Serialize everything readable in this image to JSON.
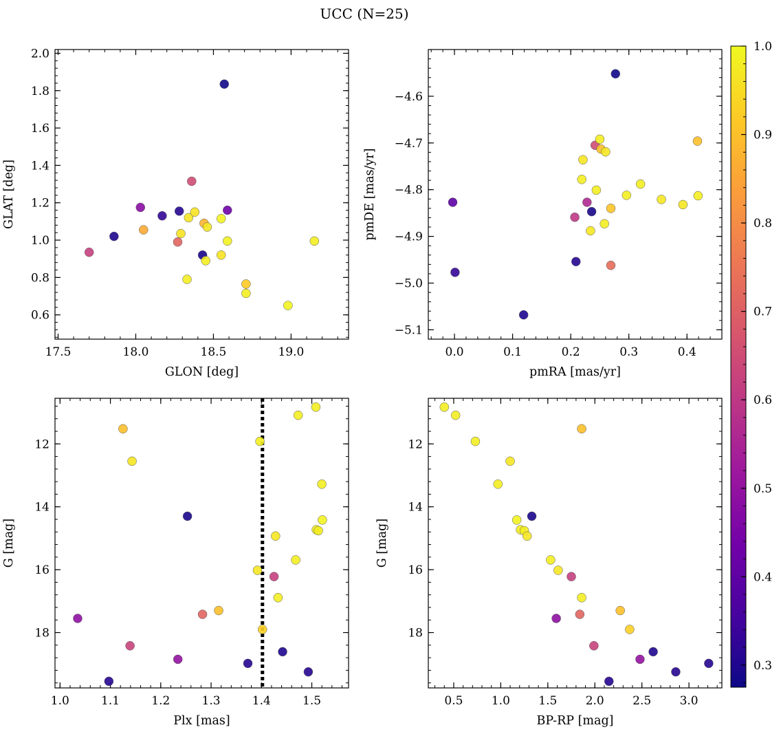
{
  "figure": {
    "title": "UCC (N=25)"
  },
  "colorbar": {
    "ticks": [
      0.3,
      0.4,
      0.5,
      0.6,
      0.7,
      0.8,
      0.9,
      1.0
    ],
    "tick_labels": [
      "0.3",
      "0.4",
      "0.5",
      "0.6",
      "0.7",
      "0.8",
      "0.9",
      "1.0"
    ],
    "range": [
      0.275,
      1.0
    ],
    "colormap": "plasma",
    "colormap_stops": [
      "#0d0887",
      "#46039f",
      "#7201a8",
      "#9c179e",
      "#bd3786",
      "#d8576b",
      "#ed7953",
      "#fb9f3a",
      "#fdca26",
      "#f0f921"
    ]
  },
  "chart_data": [
    {
      "type": "scatter",
      "xlabel": "GLON [deg]",
      "ylabel": "GLAT [deg]",
      "xlim": [
        17.48,
        19.37
      ],
      "ylim": [
        0.47,
        2.02
      ],
      "xticks": [
        17.5,
        18.0,
        18.5,
        19.0
      ],
      "xtick_labels": [
        "17.5",
        "18.0",
        "18.5",
        "19.0"
      ],
      "yticks": [
        0.6,
        0.8,
        1.0,
        1.2,
        1.4,
        1.6,
        1.8,
        2.0
      ],
      "ytick_labels": [
        "0.6",
        "0.8",
        "1.0",
        "1.2",
        "1.4",
        "1.6",
        "1.8",
        "2.0"
      ],
      "points": [
        {
          "x": 18.57,
          "y": 1.835,
          "c": 0.28
        },
        {
          "x": 17.7,
          "y": 0.935,
          "c": 0.62
        },
        {
          "x": 17.86,
          "y": 1.02,
          "c": 0.3
        },
        {
          "x": 18.03,
          "y": 1.175,
          "c": 0.48
        },
        {
          "x": 18.05,
          "y": 1.055,
          "c": 0.86
        },
        {
          "x": 18.17,
          "y": 1.13,
          "c": 0.33
        },
        {
          "x": 18.27,
          "y": 0.99,
          "c": 0.71
        },
        {
          "x": 18.28,
          "y": 1.155,
          "c": 0.31
        },
        {
          "x": 18.29,
          "y": 1.035,
          "c": 0.96
        },
        {
          "x": 18.33,
          "y": 0.79,
          "c": 0.98
        },
        {
          "x": 18.34,
          "y": 1.12,
          "c": 0.97
        },
        {
          "x": 18.36,
          "y": 1.315,
          "c": 0.65
        },
        {
          "x": 18.38,
          "y": 1.15,
          "c": 0.96
        },
        {
          "x": 18.43,
          "y": 0.92,
          "c": 0.29
        },
        {
          "x": 18.44,
          "y": 1.09,
          "c": 0.88
        },
        {
          "x": 18.45,
          "y": 0.89,
          "c": 0.98
        },
        {
          "x": 18.46,
          "y": 1.07,
          "c": 0.97
        },
        {
          "x": 18.55,
          "y": 1.115,
          "c": 0.99
        },
        {
          "x": 18.55,
          "y": 0.92,
          "c": 0.96
        },
        {
          "x": 18.59,
          "y": 1.16,
          "c": 0.43
        },
        {
          "x": 18.59,
          "y": 0.995,
          "c": 0.99
        },
        {
          "x": 18.71,
          "y": 0.765,
          "c": 0.92
        },
        {
          "x": 18.71,
          "y": 0.715,
          "c": 0.98
        },
        {
          "x": 18.98,
          "y": 0.65,
          "c": 0.99
        },
        {
          "x": 19.15,
          "y": 0.995,
          "c": 0.98
        }
      ]
    },
    {
      "type": "scatter",
      "xlabel": "pmRA [mas/yr]",
      "ylabel": "pmDE [mas/yr]",
      "xlim": [
        -0.045,
        0.46
      ],
      "ylim": [
        -5.12,
        -4.5
      ],
      "xticks": [
        0.0,
        0.1,
        0.2,
        0.3,
        0.4
      ],
      "xtick_labels": [
        "0.0",
        "0.1",
        "0.2",
        "0.3",
        "0.4"
      ],
      "yticks": [
        -5.1,
        -5.0,
        -4.9,
        -4.8,
        -4.7,
        -4.6
      ],
      "ytick_labels": [
        "−5.1",
        "−5.0",
        "−4.9",
        "−4.8",
        "−4.7",
        "−4.6"
      ],
      "points": [
        {
          "x": 0.277,
          "y": -4.552,
          "c": 0.28
        },
        {
          "x": -0.003,
          "y": -4.827,
          "c": 0.4
        },
        {
          "x": 0.001,
          "y": -4.977,
          "c": 0.33
        },
        {
          "x": 0.119,
          "y": -5.068,
          "c": 0.3
        },
        {
          "x": 0.209,
          "y": -4.954,
          "c": 0.31
        },
        {
          "x": 0.207,
          "y": -4.859,
          "c": 0.6
        },
        {
          "x": 0.228,
          "y": -4.827,
          "c": 0.56
        },
        {
          "x": 0.236,
          "y": -4.847,
          "c": 0.29
        },
        {
          "x": 0.234,
          "y": -4.888,
          "c": 0.97
        },
        {
          "x": 0.219,
          "y": -4.778,
          "c": 0.98
        },
        {
          "x": 0.221,
          "y": -4.736,
          "c": 0.97
        },
        {
          "x": 0.242,
          "y": -4.705,
          "c": 0.65
        },
        {
          "x": 0.25,
          "y": -4.692,
          "c": 0.98
        },
        {
          "x": 0.252,
          "y": -4.713,
          "c": 0.9
        },
        {
          "x": 0.26,
          "y": -4.719,
          "c": 0.97
        },
        {
          "x": 0.244,
          "y": -4.801,
          "c": 0.98
        },
        {
          "x": 0.258,
          "y": -4.873,
          "c": 0.98
        },
        {
          "x": 0.269,
          "y": -4.84,
          "c": 0.91
        },
        {
          "x": 0.269,
          "y": -4.962,
          "c": 0.73
        },
        {
          "x": 0.296,
          "y": -4.812,
          "c": 0.98
        },
        {
          "x": 0.32,
          "y": -4.788,
          "c": 0.98
        },
        {
          "x": 0.356,
          "y": -4.821,
          "c": 0.97
        },
        {
          "x": 0.393,
          "y": -4.832,
          "c": 0.97
        },
        {
          "x": 0.418,
          "y": -4.696,
          "c": 0.9
        },
        {
          "x": 0.419,
          "y": -4.813,
          "c": 0.98
        }
      ]
    },
    {
      "type": "scatter",
      "xlabel": "Plx [mas]",
      "ylabel": "G [mag]",
      "xlim": [
        0.99,
        1.573
      ],
      "ylim": [
        19.76,
        10.55
      ],
      "y_inverted": true,
      "vline": {
        "x": 1.402,
        "style": "dotted"
      },
      "xticks": [
        1.0,
        1.1,
        1.2,
        1.3,
        1.4,
        1.5
      ],
      "xtick_labels": [
        "1.0",
        "1.1",
        "1.2",
        "1.3",
        "1.4",
        "1.5"
      ],
      "yticks": [
        12,
        14,
        16,
        18
      ],
      "ytick_labels": [
        "12",
        "14",
        "16",
        "18"
      ],
      "points": [
        {
          "x": 1.125,
          "y": 11.52,
          "c": 0.9
        },
        {
          "x": 1.143,
          "y": 12.55,
          "c": 0.97
        },
        {
          "x": 1.253,
          "y": 14.3,
          "c": 0.29
        },
        {
          "x": 1.035,
          "y": 17.55,
          "c": 0.49
        },
        {
          "x": 1.097,
          "y": 19.55,
          "c": 0.31
        },
        {
          "x": 1.139,
          "y": 18.42,
          "c": 0.63
        },
        {
          "x": 1.234,
          "y": 18.85,
          "c": 0.5
        },
        {
          "x": 1.283,
          "y": 17.42,
          "c": 0.71
        },
        {
          "x": 1.315,
          "y": 17.3,
          "c": 0.9
        },
        {
          "x": 1.373,
          "y": 18.98,
          "c": 0.31
        },
        {
          "x": 1.392,
          "y": 16.02,
          "c": 0.97
        },
        {
          "x": 1.397,
          "y": 11.92,
          "c": 0.98
        },
        {
          "x": 1.402,
          "y": 17.9,
          "c": 0.93
        },
        {
          "x": 1.425,
          "y": 16.22,
          "c": 0.62
        },
        {
          "x": 1.428,
          "y": 14.93,
          "c": 0.97
        },
        {
          "x": 1.433,
          "y": 16.89,
          "c": 0.98
        },
        {
          "x": 1.442,
          "y": 18.61,
          "c": 0.3
        },
        {
          "x": 1.468,
          "y": 15.69,
          "c": 0.98
        },
        {
          "x": 1.473,
          "y": 11.09,
          "c": 0.98
        },
        {
          "x": 1.493,
          "y": 19.25,
          "c": 0.31
        },
        {
          "x": 1.508,
          "y": 10.83,
          "c": 0.98
        },
        {
          "x": 1.509,
          "y": 14.73,
          "c": 0.98
        },
        {
          "x": 1.513,
          "y": 14.76,
          "c": 0.98
        },
        {
          "x": 1.52,
          "y": 13.28,
          "c": 0.98
        },
        {
          "x": 1.521,
          "y": 14.42,
          "c": 0.99
        }
      ]
    },
    {
      "type": "scatter",
      "xlabel": "BP-RP [mag]",
      "ylabel": "G [mag]",
      "xlim": [
        0.23,
        3.35
      ],
      "ylim": [
        19.76,
        10.55
      ],
      "y_inverted": true,
      "xticks": [
        0.5,
        1.0,
        1.5,
        2.0,
        2.5,
        3.0
      ],
      "xtick_labels": [
        "0.5",
        "1.0",
        "1.5",
        "2.0",
        "2.5",
        "3.0"
      ],
      "yticks": [
        12,
        14,
        16,
        18
      ],
      "ytick_labels": [
        "12",
        "14",
        "16",
        "18"
      ],
      "points": [
        {
          "x": 0.4,
          "y": 10.83,
          "c": 0.98
        },
        {
          "x": 0.52,
          "y": 11.09,
          "c": 0.98
        },
        {
          "x": 0.73,
          "y": 11.92,
          "c": 0.98
        },
        {
          "x": 1.1,
          "y": 12.55,
          "c": 0.97
        },
        {
          "x": 0.97,
          "y": 13.28,
          "c": 0.98
        },
        {
          "x": 1.17,
          "y": 14.42,
          "c": 0.99
        },
        {
          "x": 1.33,
          "y": 14.3,
          "c": 0.29
        },
        {
          "x": 1.21,
          "y": 14.73,
          "c": 0.98
        },
        {
          "x": 1.25,
          "y": 14.76,
          "c": 0.98
        },
        {
          "x": 1.28,
          "y": 14.93,
          "c": 0.97
        },
        {
          "x": 1.53,
          "y": 15.69,
          "c": 0.98
        },
        {
          "x": 1.61,
          "y": 16.02,
          "c": 0.97
        },
        {
          "x": 1.75,
          "y": 16.22,
          "c": 0.62
        },
        {
          "x": 1.86,
          "y": 11.52,
          "c": 0.9
        },
        {
          "x": 1.86,
          "y": 16.89,
          "c": 0.98
        },
        {
          "x": 1.59,
          "y": 17.55,
          "c": 0.49
        },
        {
          "x": 1.84,
          "y": 17.42,
          "c": 0.71
        },
        {
          "x": 2.27,
          "y": 17.3,
          "c": 0.9
        },
        {
          "x": 2.37,
          "y": 17.9,
          "c": 0.93
        },
        {
          "x": 1.99,
          "y": 18.42,
          "c": 0.63
        },
        {
          "x": 2.48,
          "y": 18.85,
          "c": 0.5
        },
        {
          "x": 2.62,
          "y": 18.61,
          "c": 0.3
        },
        {
          "x": 2.86,
          "y": 19.25,
          "c": 0.31
        },
        {
          "x": 3.21,
          "y": 18.98,
          "c": 0.31
        },
        {
          "x": 2.15,
          "y": 19.55,
          "c": 0.31
        }
      ]
    }
  ]
}
